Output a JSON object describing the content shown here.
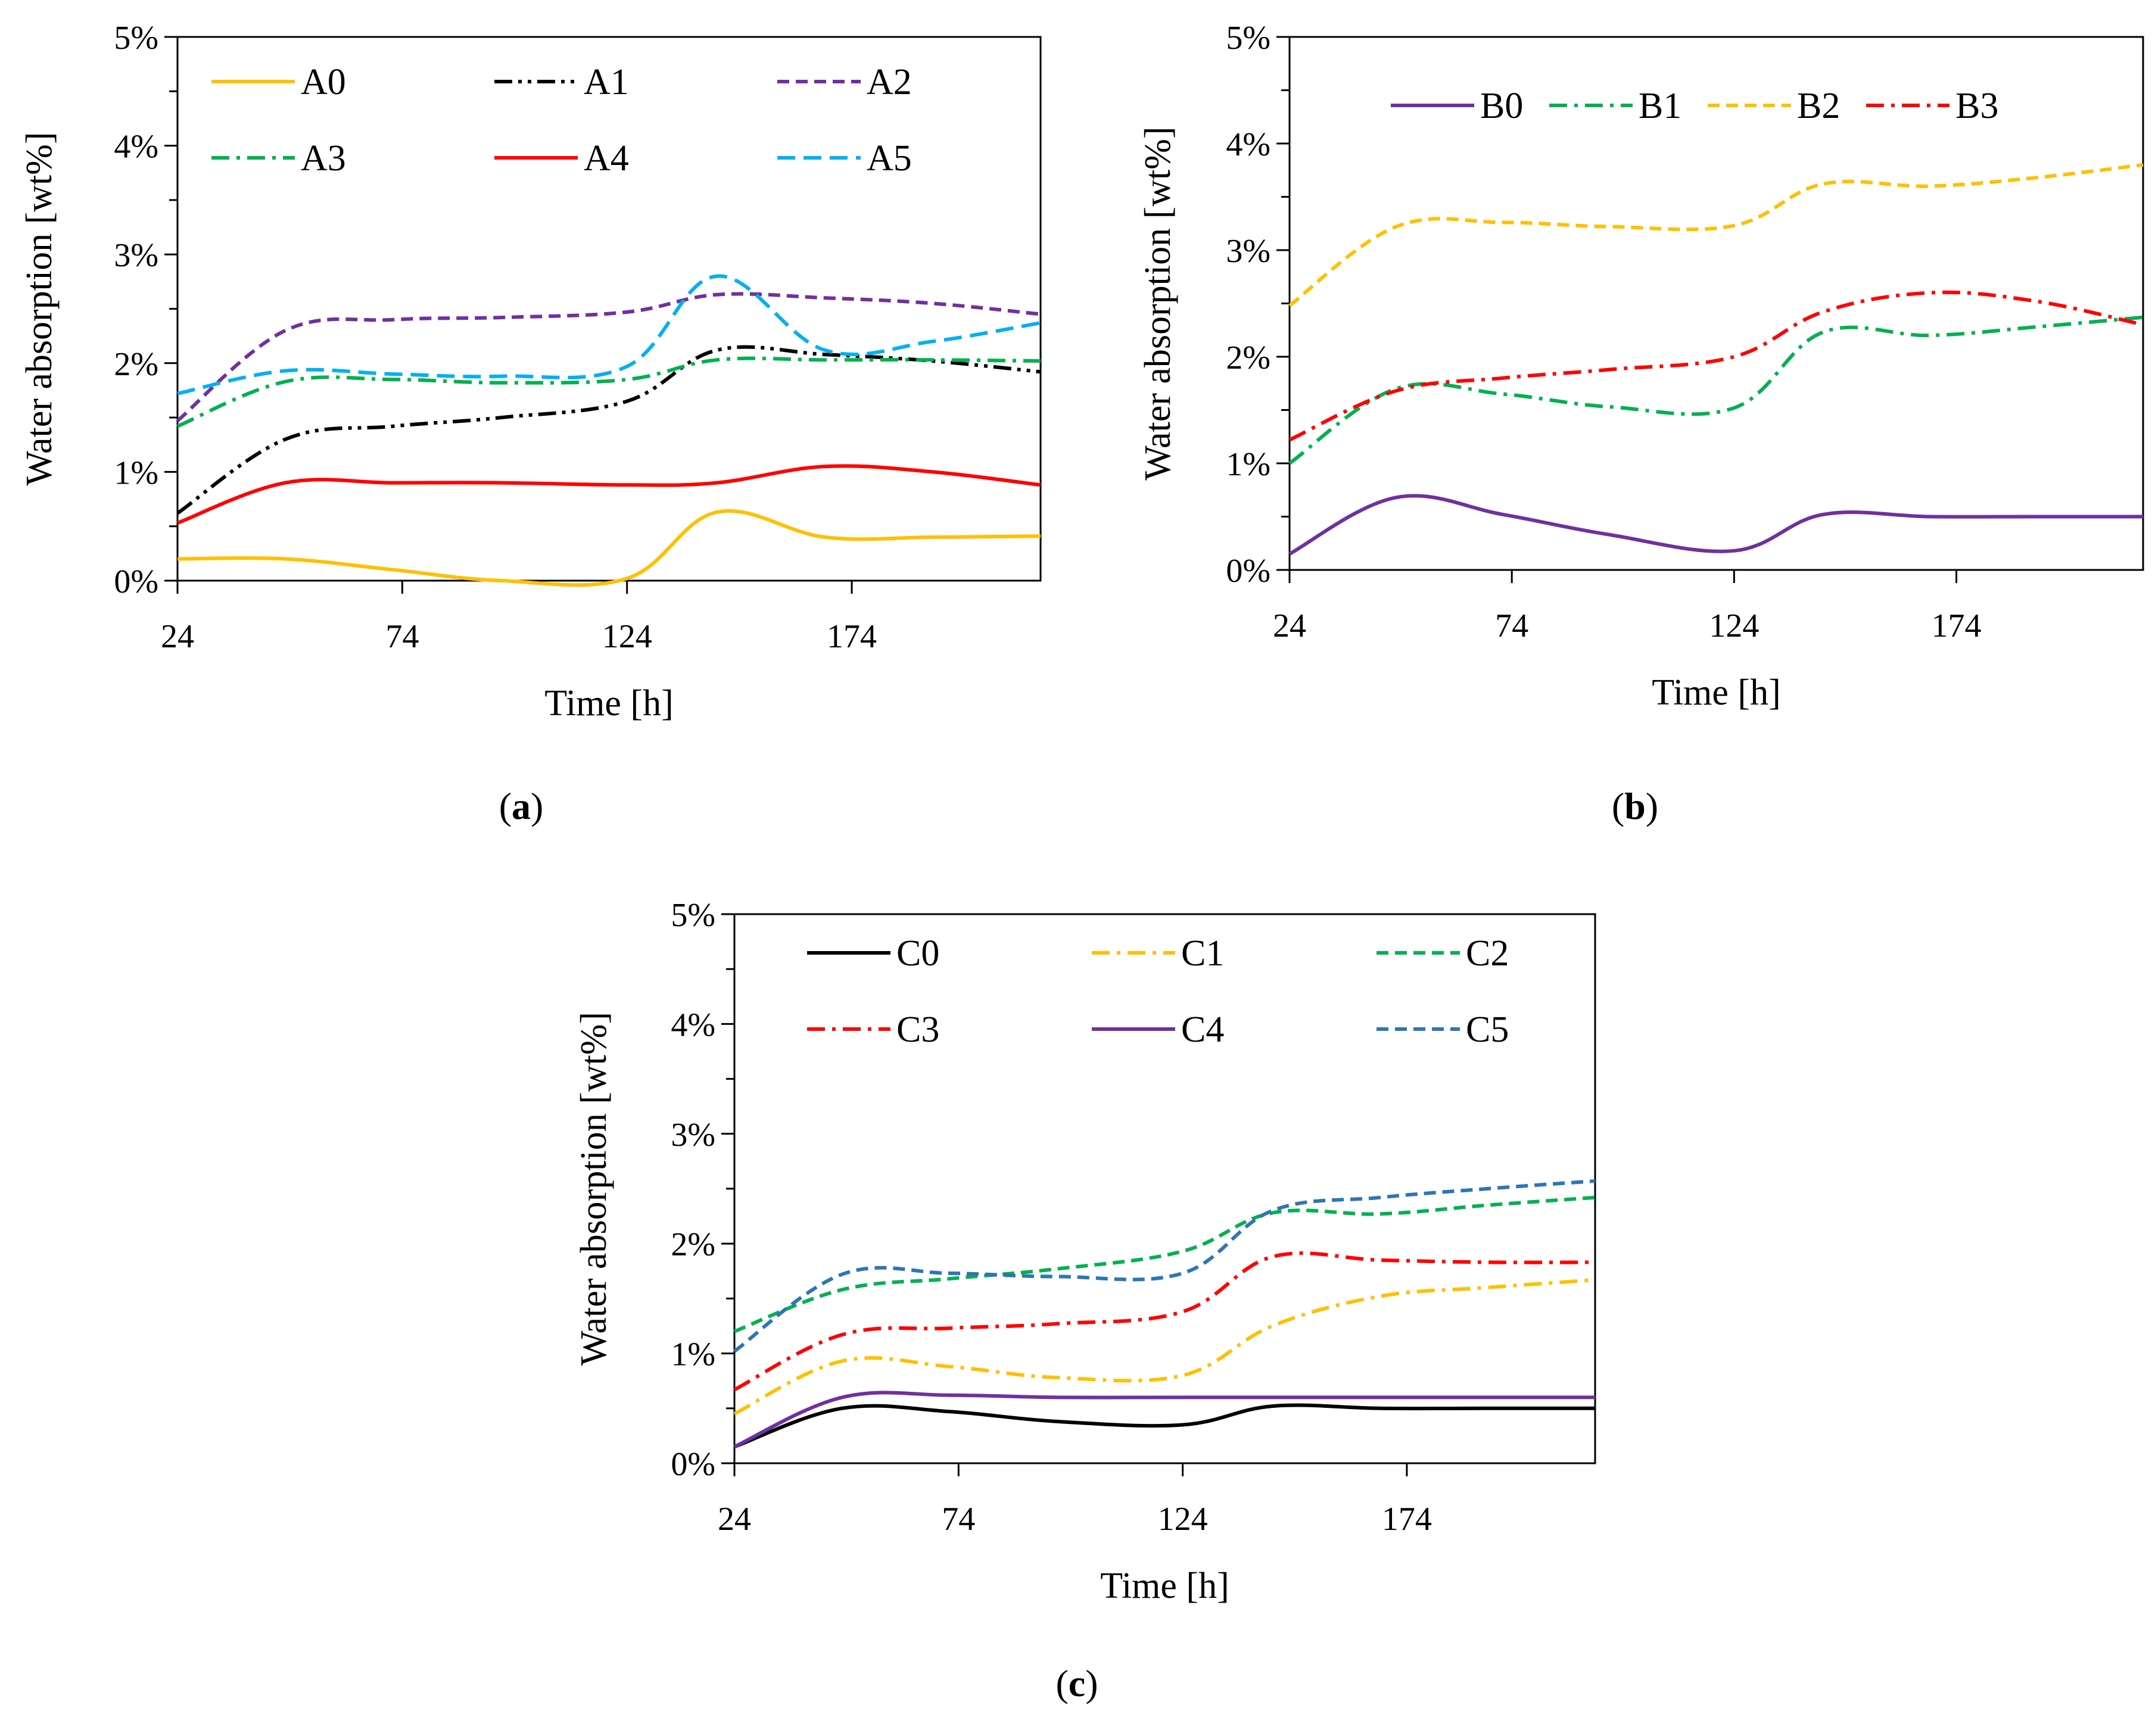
{
  "charts": [
    {
      "panel_label": "a",
      "panel_label_open": "(",
      "panel_label_close": ")",
      "legend_cols": 3
    },
    {
      "panel_label": "b",
      "panel_label_open": "(",
      "panel_label_close": ")",
      "legend_cols": 4
    },
    {
      "panel_label": "c",
      "panel_label_open": "(",
      "panel_label_close": ")",
      "legend_cols": 3
    }
  ],
  "chart_data": [
    {
      "type": "line",
      "title": "",
      "xlabel": "Time [h]",
      "ylabel": "Water absorption [wt%]",
      "xlim": [
        24,
        216
      ],
      "ylim": [
        0,
        5
      ],
      "xticks": [
        24,
        74,
        124,
        174
      ],
      "xtick_labels": [
        "24",
        "74",
        "124",
        "174"
      ],
      "yticks": [
        0,
        1,
        2,
        3,
        4,
        5
      ],
      "ytick_labels": [
        "0%",
        "1%",
        "2%",
        "3%",
        "4%",
        "5%"
      ],
      "grid": false,
      "legend_position": "top",
      "series": [
        {
          "name": "A0",
          "color": "#FFC000",
          "dash": "solid",
          "x": [
            24,
            48,
            72,
            96,
            124,
            144,
            168,
            192,
            216
          ],
          "y": [
            0.2,
            0.2,
            0.1,
            0.0,
            0.02,
            0.63,
            0.4,
            0.4,
            0.41
          ]
        },
        {
          "name": "A1",
          "color": "#000000",
          "dash": "dashdotdot",
          "x": [
            24,
            48,
            72,
            96,
            124,
            144,
            168,
            192,
            216
          ],
          "y": [
            0.62,
            1.3,
            1.42,
            1.5,
            1.65,
            2.12,
            2.08,
            2.02,
            1.92
          ]
        },
        {
          "name": "A2",
          "color": "#7030A0",
          "dash": "dash",
          "x": [
            24,
            48,
            72,
            96,
            124,
            144,
            168,
            192,
            216
          ],
          "y": [
            1.47,
            2.3,
            2.4,
            2.42,
            2.47,
            2.63,
            2.6,
            2.55,
            2.45
          ]
        },
        {
          "name": "A3",
          "color": "#00B050",
          "dash": "dashdot",
          "x": [
            24,
            48,
            72,
            96,
            124,
            144,
            168,
            192,
            216
          ],
          "y": [
            1.42,
            1.83,
            1.85,
            1.82,
            1.85,
            2.03,
            2.03,
            2.03,
            2.02
          ]
        },
        {
          "name": "A4",
          "color": "#FF0000",
          "dash": "solid",
          "x": [
            24,
            48,
            72,
            96,
            124,
            144,
            168,
            192,
            216
          ],
          "y": [
            0.53,
            0.9,
            0.9,
            0.9,
            0.88,
            0.9,
            1.05,
            1.0,
            0.88
          ]
        },
        {
          "name": "A5",
          "color": "#00B0F0",
          "dash": "longdash",
          "x": [
            24,
            48,
            72,
            96,
            124,
            144,
            168,
            192,
            216
          ],
          "y": [
            1.72,
            1.93,
            1.9,
            1.88,
            1.97,
            2.8,
            2.12,
            2.2,
            2.37
          ]
        }
      ]
    },
    {
      "type": "line",
      "title": "",
      "xlabel": "Time [h]",
      "ylabel": "Water absorption [wt%]",
      "xlim": [
        24,
        216
      ],
      "ylim": [
        0,
        5
      ],
      "xticks": [
        24,
        74,
        124,
        174
      ],
      "xtick_labels": [
        "24",
        "74",
        "124",
        "174"
      ],
      "yticks": [
        0,
        1,
        2,
        3,
        4,
        5
      ],
      "ytick_labels": [
        "0%",
        "1%",
        "2%",
        "3%",
        "4%",
        "5%"
      ],
      "grid": false,
      "legend_position": "top",
      "series": [
        {
          "name": "B0",
          "color": "#7030A0",
          "dash": "solid",
          "x": [
            24,
            48,
            72,
            96,
            124,
            144,
            168,
            192,
            216
          ],
          "y": [
            0.15,
            0.68,
            0.52,
            0.33,
            0.18,
            0.52,
            0.5,
            0.5,
            0.5
          ]
        },
        {
          "name": "B1",
          "color": "#00B050",
          "dash": "dashdot",
          "x": [
            24,
            48,
            72,
            96,
            124,
            144,
            168,
            192,
            216
          ],
          "y": [
            1.0,
            1.7,
            1.65,
            1.53,
            1.52,
            2.23,
            2.2,
            2.28,
            2.37
          ]
        },
        {
          "name": "B2",
          "color": "#FFC000",
          "dash": "dash",
          "x": [
            24,
            48,
            72,
            96,
            124,
            144,
            168,
            192,
            216
          ],
          "y": [
            2.48,
            3.22,
            3.26,
            3.22,
            3.23,
            3.62,
            3.6,
            3.68,
            3.8
          ]
        },
        {
          "name": "B3",
          "color": "#FF0000",
          "dash": "dashdot",
          "x": [
            24,
            48,
            72,
            96,
            124,
            144,
            168,
            192,
            216
          ],
          "y": [
            1.22,
            1.68,
            1.8,
            1.88,
            2.0,
            2.42,
            2.6,
            2.52,
            2.3
          ]
        }
      ]
    },
    {
      "type": "line",
      "title": "",
      "xlabel": "Time [h]",
      "ylabel": "Water absorption [wt%]",
      "xlim": [
        24,
        216
      ],
      "ylim": [
        0,
        5
      ],
      "xticks": [
        24,
        74,
        124,
        174
      ],
      "xtick_labels": [
        "24",
        "74",
        "124",
        "174"
      ],
      "yticks": [
        0,
        1,
        2,
        3,
        4,
        5
      ],
      "ytick_labels": [
        "0%",
        "1%",
        "2%",
        "3%",
        "4%",
        "5%"
      ],
      "grid": false,
      "legend_position": "top",
      "series": [
        {
          "name": "C0",
          "color": "#000000",
          "dash": "solid",
          "x": [
            24,
            48,
            72,
            96,
            124,
            144,
            168,
            192,
            216
          ],
          "y": [
            0.15,
            0.5,
            0.47,
            0.38,
            0.35,
            0.52,
            0.5,
            0.5,
            0.5
          ]
        },
        {
          "name": "C1",
          "color": "#FFC000",
          "dash": "dashdot",
          "x": [
            24,
            48,
            72,
            96,
            124,
            144,
            168,
            192,
            216
          ],
          "y": [
            0.45,
            0.93,
            0.88,
            0.78,
            0.8,
            1.25,
            1.52,
            1.6,
            1.67
          ]
        },
        {
          "name": "C2",
          "color": "#00B050",
          "dash": "dash",
          "x": [
            24,
            48,
            72,
            96,
            124,
            144,
            168,
            192,
            216
          ],
          "y": [
            1.2,
            1.58,
            1.68,
            1.77,
            1.93,
            2.28,
            2.27,
            2.35,
            2.42
          ]
        },
        {
          "name": "C3",
          "color": "#FF0000",
          "dash": "dashdot",
          "x": [
            24,
            48,
            72,
            96,
            124,
            144,
            168,
            192,
            216
          ],
          "y": [
            0.67,
            1.17,
            1.23,
            1.27,
            1.38,
            1.88,
            1.85,
            1.83,
            1.83
          ]
        },
        {
          "name": "C4",
          "color": "#7030A0",
          "dash": "solid",
          "x": [
            24,
            48,
            72,
            96,
            124,
            144,
            168,
            192,
            216
          ],
          "y": [
            0.15,
            0.6,
            0.62,
            0.6,
            0.6,
            0.6,
            0.6,
            0.6,
            0.6
          ]
        },
        {
          "name": "C5",
          "color": "#2E75B6",
          "dash": "dash",
          "x": [
            24,
            48,
            72,
            96,
            124,
            144,
            168,
            192,
            216
          ],
          "y": [
            1.02,
            1.72,
            1.73,
            1.7,
            1.73,
            2.3,
            2.42,
            2.5,
            2.57
          ]
        }
      ]
    }
  ]
}
